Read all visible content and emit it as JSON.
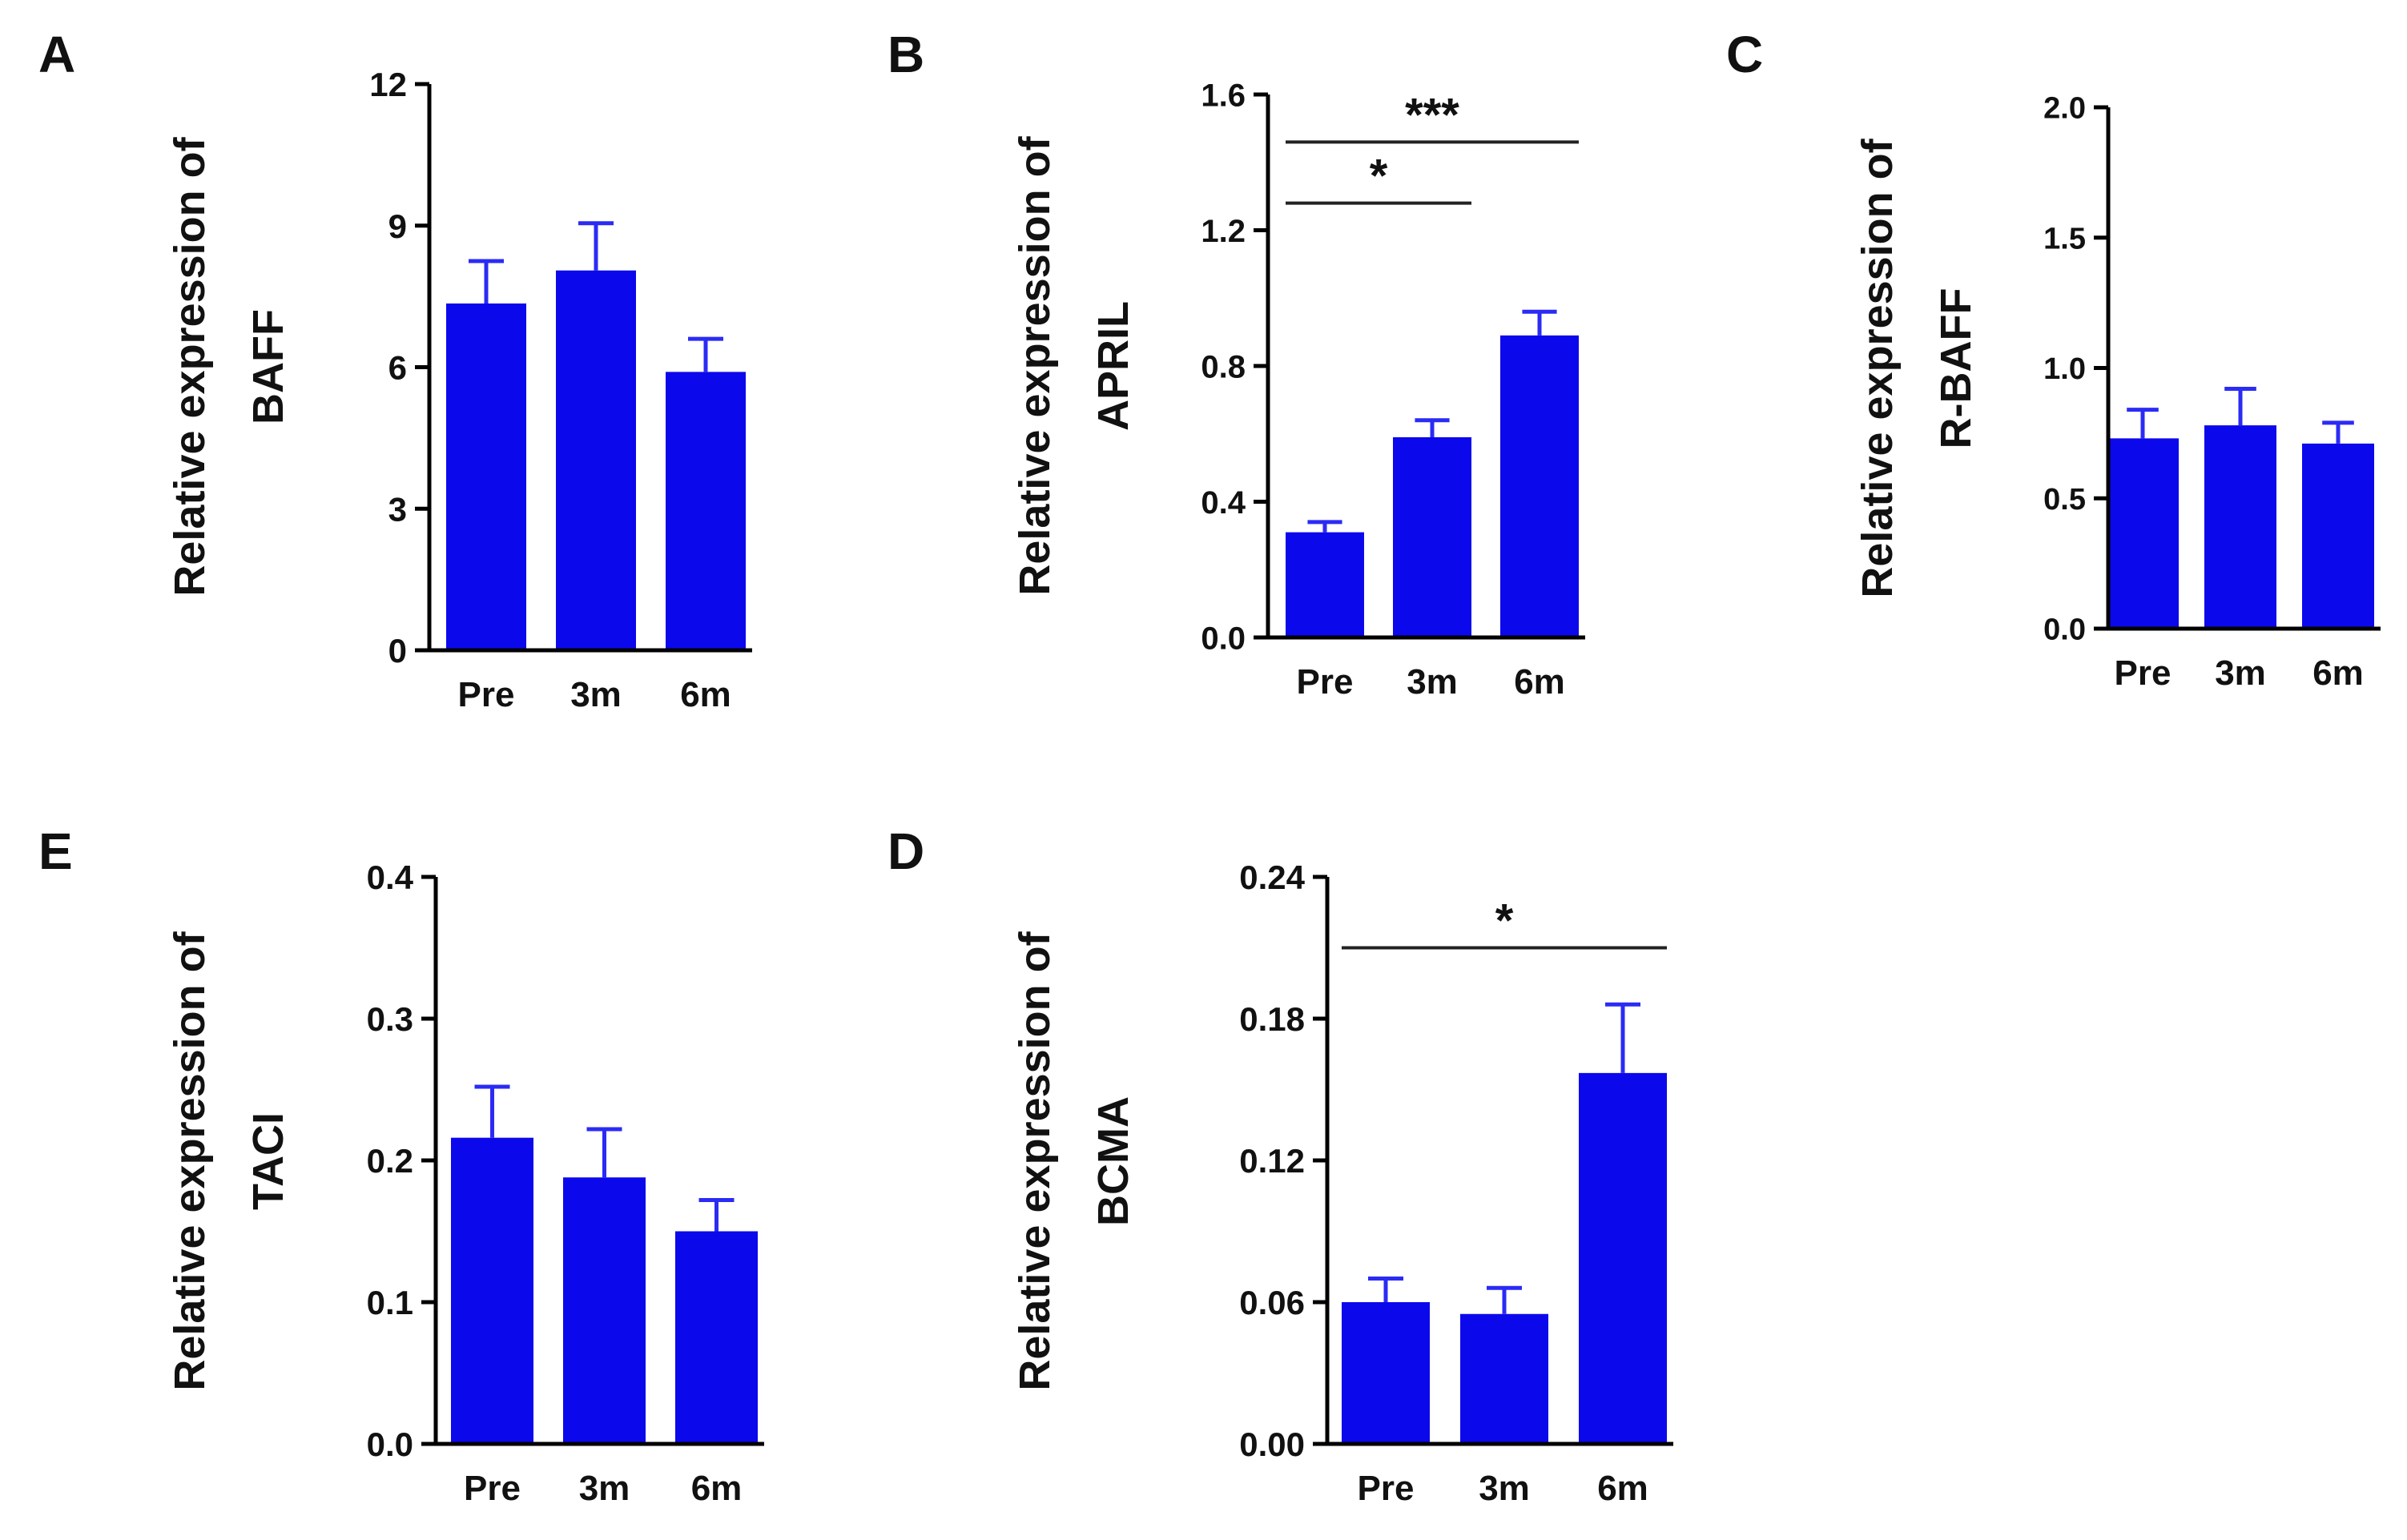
{
  "colors": {
    "bar": "#0c08ec",
    "error": "#2b2bf5",
    "axis": "#000000"
  },
  "chart_data": [
    {
      "type": "bar",
      "panel_label": "A",
      "ylabel_line1": "Relative expression of",
      "ylabel_line2": "BAFF",
      "categories": [
        "Pre",
        "3m",
        "6m"
      ],
      "values": [
        7.35,
        8.05,
        5.9
      ],
      "errors": [
        0.9,
        1.0,
        0.7
      ],
      "ylim": [
        0,
        12
      ],
      "yticks": [
        0,
        3,
        6,
        9,
        12
      ],
      "ytick_labels": [
        "0",
        "3",
        "6",
        "9",
        "12"
      ],
      "significance": []
    },
    {
      "type": "bar",
      "panel_label": "B",
      "ylabel_line1": "Relative expression of",
      "ylabel_line2": "APRIL",
      "categories": [
        "Pre",
        "3m",
        "6m"
      ],
      "values": [
        0.31,
        0.59,
        0.89
      ],
      "errors": [
        0.03,
        0.05,
        0.07
      ],
      "ylim": [
        0,
        1.6
      ],
      "yticks": [
        0,
        0.4,
        0.8,
        1.2,
        1.6
      ],
      "ytick_labels": [
        "0.0",
        "0.4",
        "0.8",
        "1.2",
        "1.6"
      ],
      "significance": [
        {
          "from": 0,
          "to": 2,
          "level": 1.46,
          "label": "***"
        },
        {
          "from": 0,
          "to": 1,
          "level": 1.28,
          "label": "*"
        }
      ]
    },
    {
      "type": "bar",
      "panel_label": "C",
      "ylabel_line1": "Relative expression of",
      "ylabel_line2": "R-BAFF",
      "categories": [
        "Pre",
        "3m",
        "6m"
      ],
      "values": [
        0.73,
        0.78,
        0.71
      ],
      "errors": [
        0.11,
        0.14,
        0.08
      ],
      "ylim": [
        0,
        2.0
      ],
      "yticks": [
        0,
        0.5,
        1.0,
        1.5,
        2.0
      ],
      "ytick_labels": [
        "0.0",
        "0.5",
        "1.0",
        "1.5",
        "2.0"
      ],
      "significance": []
    },
    {
      "type": "bar",
      "panel_label": "E",
      "ylabel_line1": "Relative expression of",
      "ylabel_line2": "TACI",
      "categories": [
        "Pre",
        "3m",
        "6m"
      ],
      "values": [
        0.216,
        0.188,
        0.15
      ],
      "errors": [
        0.036,
        0.034,
        0.022
      ],
      "ylim": [
        0,
        0.4
      ],
      "yticks": [
        0,
        0.1,
        0.2,
        0.3,
        0.4
      ],
      "ytick_labels": [
        "0.0",
        "0.1",
        "0.2",
        "0.3",
        "0.4"
      ],
      "significance": []
    },
    {
      "type": "bar",
      "panel_label": "D",
      "ylabel_line1": "Relative expression of",
      "ylabel_line2": "BCMA",
      "categories": [
        "Pre",
        "3m",
        "6m"
      ],
      "values": [
        0.06,
        0.055,
        0.157
      ],
      "errors": [
        0.01,
        0.011,
        0.029
      ],
      "ylim": [
        0,
        0.24
      ],
      "yticks": [
        0,
        0.06,
        0.12,
        0.18,
        0.24
      ],
      "ytick_labels": [
        "0.00",
        "0.06",
        "0.12",
        "0.18",
        "0.24"
      ],
      "significance": [
        {
          "from": 0,
          "to": 2,
          "level": 0.21,
          "label": "*"
        }
      ]
    }
  ]
}
